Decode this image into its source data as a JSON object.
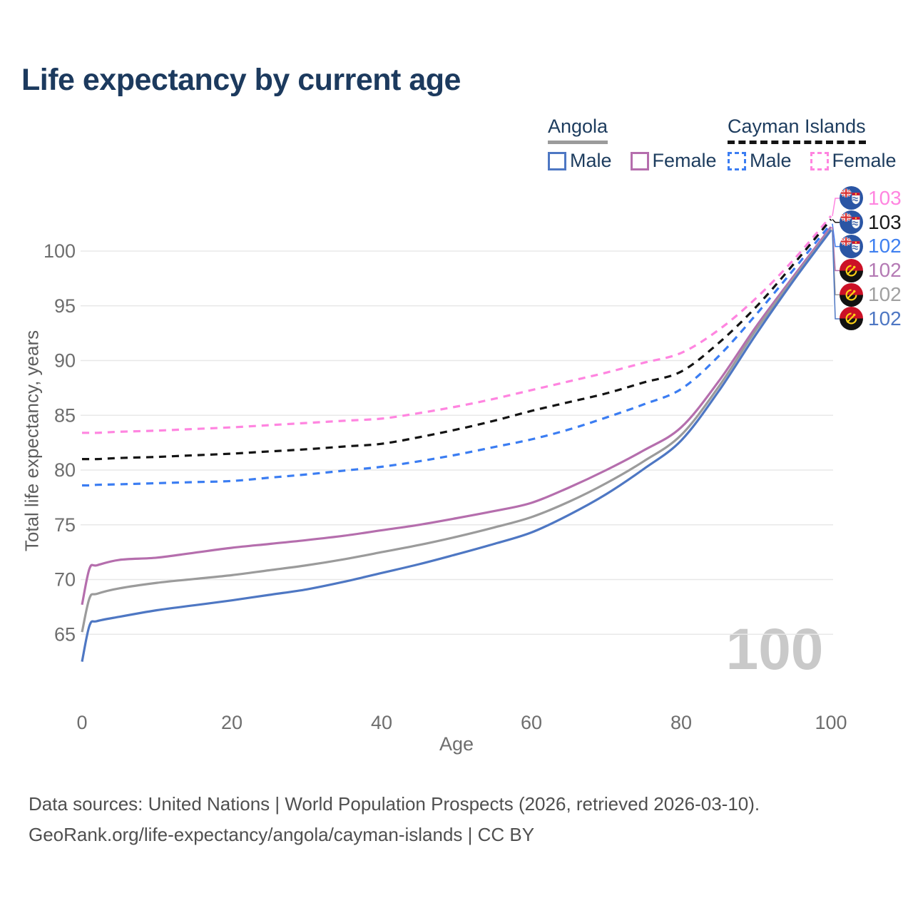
{
  "page_title": "Life expectancy by current age",
  "legend": {
    "angola": {
      "label": "Angola",
      "male": "Male",
      "female": "Female",
      "underline_color": "#9b9b9b",
      "male_color": "#4e77c3",
      "female_color": "#b56ead"
    },
    "cayman": {
      "label": "Cayman Islands",
      "male": "Male",
      "female": "Female",
      "underline_color": "#141414",
      "male_color": "#3b7df2",
      "female_color": "#ff85e0"
    }
  },
  "axes": {
    "x_label": "Age",
    "y_label": "Total life expectancy, years"
  },
  "watermark": "100",
  "end_labels": [
    {
      "flag": "cayman-islands",
      "value": "103",
      "color": "#ff85e0"
    },
    {
      "flag": "cayman-islands",
      "value": "103",
      "color": "#1a1a1a"
    },
    {
      "flag": "cayman-islands",
      "value": "102",
      "color": "#3f80f0"
    },
    {
      "flag": "angola",
      "value": "102",
      "color": "#b47ab4"
    },
    {
      "flag": "angola",
      "value": "102",
      "color": "#a0a0a0"
    },
    {
      "flag": "angola",
      "value": "102",
      "color": "#4e77c3"
    }
  ],
  "footer": {
    "line1": "Data sources: United Nations | World Population Prospects (2026, retrieved 2026-03-10).",
    "line2": "GeoRank.org/life-expectancy/angola/cayman-islands | CC BY"
  },
  "chart_data": {
    "type": "line",
    "title": "Life expectancy by current age",
    "xlabel": "Age",
    "ylabel": "Total life expectancy, years",
    "xlim": [
      0,
      100
    ],
    "ylim": [
      62,
      104
    ],
    "xticks": [
      0,
      20,
      40,
      60,
      80,
      100
    ],
    "yticks": [
      65,
      70,
      75,
      80,
      85,
      90,
      95,
      100
    ],
    "grid": true,
    "legend_position": "top-right",
    "x": [
      0,
      1,
      2,
      5,
      10,
      15,
      20,
      25,
      30,
      35,
      40,
      45,
      50,
      55,
      60,
      65,
      70,
      75,
      80,
      85,
      90,
      95,
      100
    ],
    "series": [
      {
        "name": "Cayman Islands Female",
        "color": "#ff85e0",
        "dash": true,
        "end_label": "103",
        "values": [
          83.4,
          83.4,
          83.4,
          83.5,
          83.6,
          83.75,
          83.9,
          84.1,
          84.3,
          84.5,
          84.7,
          85.2,
          85.8,
          86.5,
          87.3,
          88.1,
          88.9,
          89.8,
          90.7,
          92.8,
          95.7,
          99.2,
          103.2
        ]
      },
      {
        "name": "Cayman Islands Both sexes",
        "color": "#141414",
        "dash": true,
        "end_label": "103",
        "values": [
          81.0,
          81.0,
          81.0,
          81.1,
          81.2,
          81.35,
          81.5,
          81.7,
          81.9,
          82.15,
          82.4,
          83.0,
          83.7,
          84.5,
          85.4,
          86.2,
          87.0,
          88.0,
          89.0,
          91.6,
          94.9,
          98.8,
          102.9
        ]
      },
      {
        "name": "Cayman Islands Male",
        "color": "#3b7df2",
        "dash": true,
        "end_label": "102",
        "values": [
          78.6,
          78.6,
          78.65,
          78.7,
          78.8,
          78.9,
          79.0,
          79.3,
          79.6,
          79.95,
          80.3,
          80.8,
          81.4,
          82.1,
          82.8,
          83.7,
          84.8,
          86.0,
          87.4,
          90.4,
          94.2,
          98.3,
          102.5
        ]
      },
      {
        "name": "Angola Female",
        "color": "#b56ead",
        "dash": false,
        "end_label": "102",
        "values": [
          67.7,
          71.0,
          71.3,
          71.8,
          72.0,
          72.45,
          72.9,
          73.25,
          73.6,
          74.0,
          74.5,
          75.0,
          75.6,
          76.25,
          77.0,
          78.4,
          80.0,
          81.8,
          83.9,
          88.1,
          93.1,
          97.7,
          102.2
        ]
      },
      {
        "name": "Angola Both sexes",
        "color": "#9b9b9b",
        "dash": false,
        "end_label": "102",
        "values": [
          65.2,
          68.3,
          68.7,
          69.2,
          69.7,
          70.05,
          70.4,
          70.85,
          71.3,
          71.85,
          72.5,
          73.15,
          73.9,
          74.75,
          75.7,
          77.1,
          78.8,
          80.8,
          83.2,
          87.6,
          92.8,
          97.5,
          102.0
        ]
      },
      {
        "name": "Angola Male",
        "color": "#4e77c3",
        "dash": false,
        "end_label": "102",
        "values": [
          62.5,
          65.8,
          66.2,
          66.6,
          67.2,
          67.65,
          68.1,
          68.6,
          69.1,
          69.8,
          70.6,
          71.4,
          72.3,
          73.25,
          74.3,
          75.9,
          77.8,
          80.1,
          82.7,
          87.2,
          92.4,
          97.3,
          101.9
        ]
      }
    ]
  }
}
